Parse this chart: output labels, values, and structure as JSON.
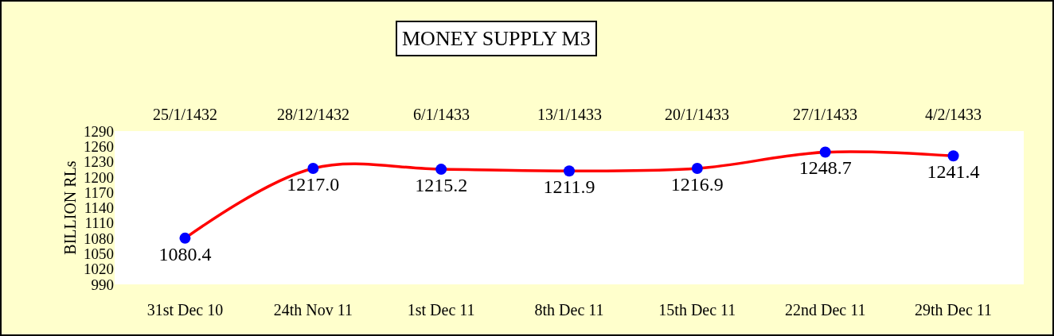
{
  "chart_data": {
    "type": "line",
    "title": "MONEY SUPPLY M3",
    "ylabel": "BILLION RLs",
    "categories": [
      "31st Dec 10",
      "24th Nov 11",
      "1st Dec 11",
      "8th Dec 11",
      "15th Dec 11",
      "22nd Dec 11",
      "29th Dec 11"
    ],
    "series": [
      {
        "color": "#ff0000",
        "values": [
          1080.4,
          1217.0,
          1215.2,
          1211.9,
          1216.9,
          1248.7,
          1241.4
        ],
        "value_labels": [
          "1080.4",
          "1217.0",
          "1215.2",
          "1211.9",
          "1216.9",
          "1248.7",
          "1241.4"
        ],
        "colors": [
          "#0000ff",
          "#0000ff",
          "#0000ff",
          "#0000ff",
          "#0000ff",
          "#0000ff",
          "#0000ff"
        ]
      }
    ],
    "ylim": [
      990,
      1290
    ],
    "yticks": [
      990,
      1020,
      1050,
      1080,
      1110,
      1140,
      1170,
      1200,
      1230,
      1260,
      1290
    ],
    "annotations": [
      "25/1/1432",
      "28/12/1432",
      "6/1/1433",
      "13/1/1433",
      "20/1/1433",
      "27/1/1433",
      "4/2/1433"
    ],
    "marker": "circle",
    "line_style": "solid",
    "grid": false
  }
}
